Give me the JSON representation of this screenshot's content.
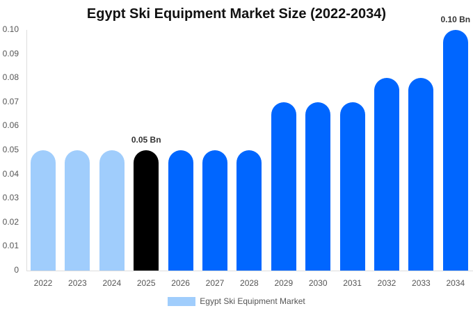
{
  "chart_data": {
    "type": "bar",
    "title": "Egypt Ski Equipment Market Size (2022-2034)",
    "xlabel": "",
    "ylabel": "",
    "ylim": [
      0,
      0.1
    ],
    "yticks": [
      "0",
      "0.01",
      "0.02",
      "0.03",
      "0.04",
      "0.05",
      "0.06",
      "0.07",
      "0.08",
      "0.09",
      "0.10"
    ],
    "grid": false,
    "legend_position": "bottom",
    "categories": [
      "2022",
      "2023",
      "2024",
      "2025",
      "2026",
      "2027",
      "2028",
      "2029",
      "2030",
      "2031",
      "2032",
      "2033",
      "2034"
    ],
    "series": [
      {
        "name": "Egypt Ski Equipment Market",
        "values": [
          0.05,
          0.05,
          0.05,
          0.05,
          0.05,
          0.05,
          0.05,
          0.07,
          0.07,
          0.07,
          0.08,
          0.08,
          0.1
        ]
      }
    ],
    "bar_colors": [
      "#a0cdfc",
      "#a0cdfc",
      "#a0cdfc",
      "#000000",
      "#0066ff",
      "#0066ff",
      "#0066ff",
      "#0066ff",
      "#0066ff",
      "#0066ff",
      "#0066ff",
      "#0066ff",
      "#0066ff"
    ],
    "annotations": [
      {
        "category": "2025",
        "text": "0.05 Bn"
      },
      {
        "category": "2034",
        "text": "0.10 Bn"
      }
    ],
    "legend": [
      {
        "label": "Egypt Ski Equipment Market",
        "color": "#a0cdfc"
      }
    ]
  }
}
